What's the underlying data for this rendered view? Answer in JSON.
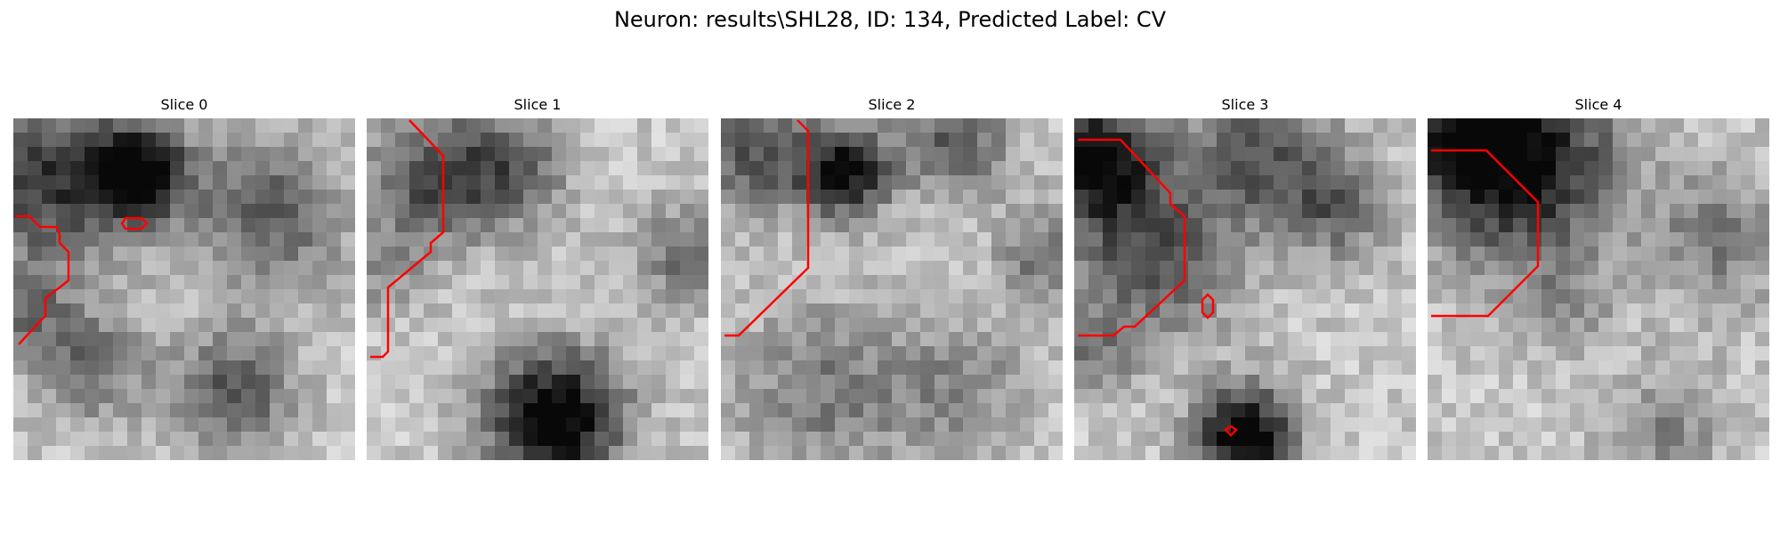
{
  "figure": {
    "title": "Neuron: results\\SHL28, ID: 134, Predicted Label: CV"
  },
  "contour_color": "#ff0000",
  "panels": [
    {
      "title": "Slice 0"
    },
    {
      "title": "Slice 1"
    },
    {
      "title": "Slice 2"
    },
    {
      "title": "Slice 3"
    },
    {
      "title": "Slice 4"
    }
  ]
}
